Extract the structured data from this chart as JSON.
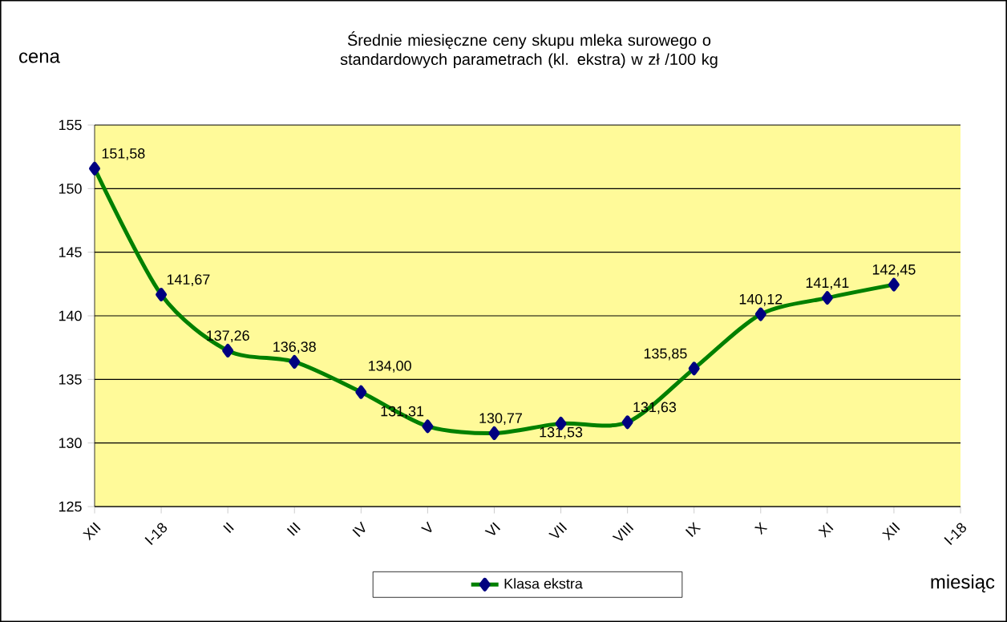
{
  "chart_data": {
    "type": "line",
    "title": "Średnie miesięczne ceny skupu mleka surowego o standardowych parametrach (kl. ekstra) w zł /100 kg",
    "ylabel": "cena",
    "xlabel": "miesiąc",
    "categories": [
      "XII",
      "I-18",
      "II",
      "III",
      "IV",
      "V",
      "VI",
      "VII",
      "VIII",
      "IX",
      "X",
      "XI",
      "XII",
      "I-18"
    ],
    "series": [
      {
        "name": "Klasa ekstra",
        "color": "#008000",
        "values": [
          151.58,
          141.67,
          137.26,
          136.38,
          134.0,
          131.31,
          130.77,
          131.53,
          131.63,
          135.85,
          140.12,
          141.41,
          142.45,
          null
        ],
        "value_labels": [
          "151,58",
          "141,67",
          "137,26",
          "136,38",
          "134,00",
          "131,31",
          "130,77",
          "131,53",
          "131,63",
          "135,85",
          "140,12",
          "141,41",
          "142,45",
          null
        ]
      }
    ],
    "marker": "diamond",
    "ylim": [
      125,
      155
    ],
    "yticks": [
      125,
      130,
      135,
      140,
      145,
      150,
      155
    ],
    "grid": "y",
    "legend": "bottom"
  }
}
